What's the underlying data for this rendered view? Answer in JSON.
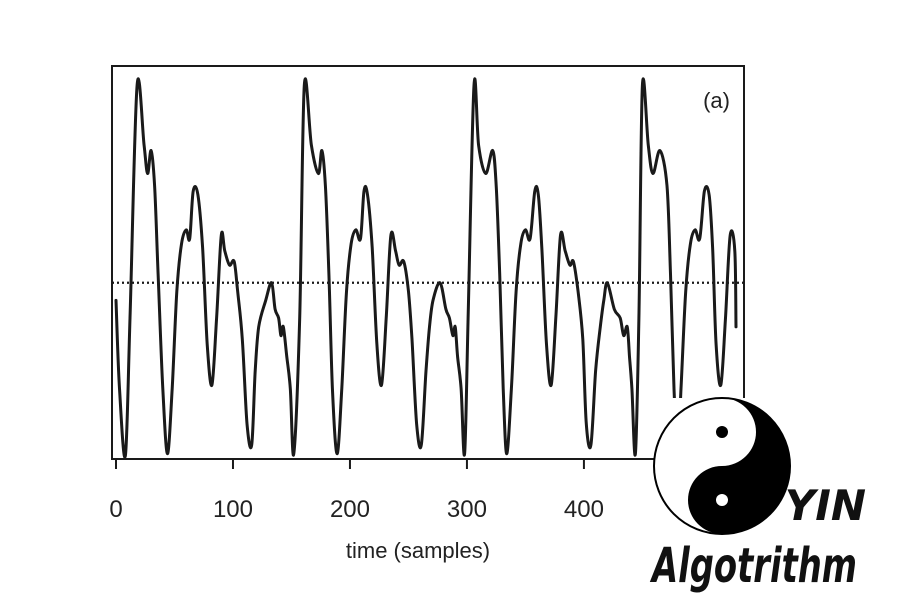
{
  "chart_data": {
    "type": "line",
    "panel_label": "(a)",
    "xlabel": "time (samples)",
    "ylabel": "",
    "xlim": [
      0,
      530
    ],
    "ylim": [
      -1.0,
      1.23
    ],
    "x_ticks": [
      0,
      100,
      200,
      300,
      400
    ],
    "grid": false,
    "reference_line": {
      "y": 0,
      "style": "dotted"
    },
    "series": [
      {
        "period": 149,
        "x": [
          0,
          3,
          8,
          12,
          18,
          24,
          27,
          30,
          33,
          36,
          40,
          44,
          48,
          52,
          56,
          60,
          63,
          66,
          70,
          74,
          78,
          82,
          86,
          90,
          93,
          97,
          101,
          104,
          108,
          112,
          116,
          119,
          122,
          128,
          133,
          136,
          139,
          141,
          143,
          146,
          149,
          152,
          157,
          161,
          167,
          173,
          176,
          179,
          182,
          185,
          189,
          193,
          197,
          201,
          205,
          209,
          212,
          215,
          219,
          223,
          227,
          231,
          235,
          239,
          242,
          246,
          250,
          253,
          257,
          261,
          265,
          268,
          271,
          277,
          282,
          285,
          288,
          290,
          292,
          295,
          298,
          301,
          306,
          310,
          316,
          322,
          325,
          328,
          331,
          334,
          338,
          342,
          346,
          350,
          354,
          358,
          361,
          364,
          368,
          372,
          376,
          380,
          384,
          388,
          391,
          395,
          399,
          402,
          406,
          410,
          414,
          417,
          420,
          426,
          431,
          434,
          437,
          439,
          441,
          444,
          447,
          450,
          455,
          459,
          465,
          471,
          474,
          477,
          480,
          483,
          487,
          491,
          495,
          499,
          503,
          507,
          510,
          513,
          517,
          521,
          525,
          529,
          530
        ],
        "y": [
          -0.1,
          -0.6,
          -0.98,
          -0.2,
          1.12,
          0.78,
          0.62,
          0.75,
          0.55,
          0.05,
          -0.6,
          -0.97,
          -0.6,
          -0.05,
          0.22,
          0.3,
          0.25,
          0.52,
          0.5,
          0.2,
          -0.35,
          -0.58,
          -0.2,
          0.27,
          0.18,
          0.1,
          0.12,
          -0.05,
          -0.32,
          -0.8,
          -0.92,
          -0.5,
          -0.25,
          -0.1,
          0.0,
          -0.15,
          -0.2,
          -0.3,
          -0.25,
          -0.42,
          -0.6,
          -0.97,
          -0.2,
          1.12,
          0.78,
          0.62,
          0.75,
          0.55,
          0.05,
          -0.6,
          -0.97,
          -0.6,
          -0.05,
          0.22,
          0.3,
          0.25,
          0.52,
          0.5,
          0.2,
          -0.35,
          -0.58,
          -0.2,
          0.27,
          0.18,
          0.1,
          0.12,
          -0.05,
          -0.32,
          -0.8,
          -0.92,
          -0.5,
          -0.25,
          -0.1,
          0.0,
          -0.15,
          -0.2,
          -0.3,
          -0.25,
          -0.42,
          -0.6,
          -0.97,
          -0.2,
          1.12,
          0.78,
          0.62,
          0.75,
          0.55,
          0.05,
          -0.6,
          -0.97,
          -0.6,
          -0.05,
          0.22,
          0.3,
          0.25,
          0.52,
          0.5,
          0.2,
          -0.35,
          -0.58,
          -0.2,
          0.27,
          0.18,
          0.1,
          0.12,
          -0.05,
          -0.32,
          -0.8,
          -0.92,
          -0.5,
          -0.25,
          -0.1,
          0.0,
          -0.15,
          -0.2,
          -0.3,
          -0.25,
          -0.42,
          -0.6,
          -0.97,
          -0.2,
          1.12,
          0.78,
          0.62,
          0.75,
          0.55,
          0.05,
          -0.6,
          -0.97,
          -0.6,
          -0.05,
          0.22,
          0.3,
          0.25,
          0.52,
          0.5,
          0.2,
          -0.35,
          -0.58,
          -0.2,
          0.27,
          0.18,
          -0.25
        ]
      }
    ]
  },
  "logo": {
    "line1": "YIN",
    "line2": "Algotrithm",
    "icon": "yin-yang-icon",
    "colors": {
      "dark": "#000000",
      "light": "#ffffff"
    }
  },
  "colors": {
    "line": "#1a1a1a",
    "frame": "#1a1a1a",
    "background": "#ffffff"
  }
}
